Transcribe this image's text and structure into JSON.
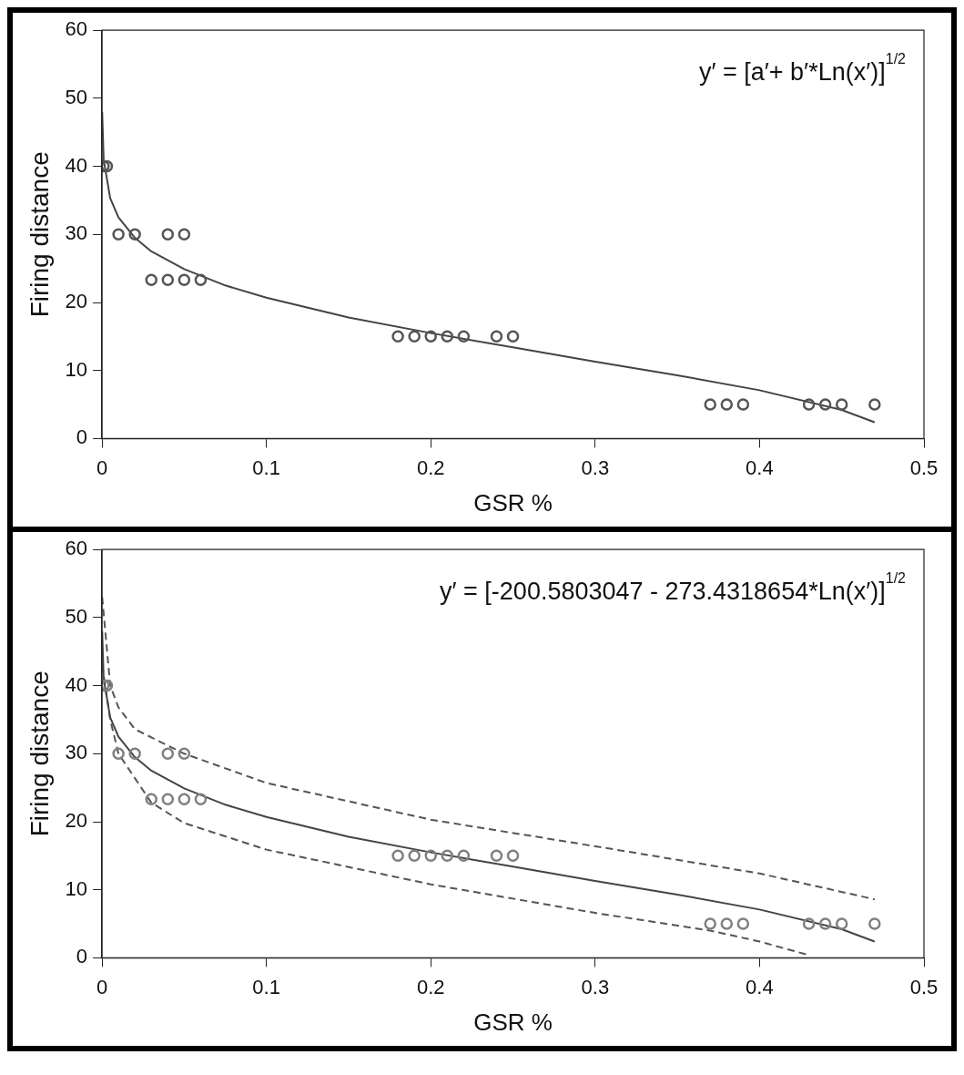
{
  "chart_data": [
    {
      "type": "scatter",
      "xlabel": "GSR %",
      "ylabel": "Firing distance",
      "xlim": [
        0,
        0.5
      ],
      "xticks": [
        0,
        0.1,
        0.2,
        0.3,
        0.4,
        0.5
      ],
      "ylim": [
        0,
        60
      ],
      "yticks": [
        0,
        10,
        20,
        30,
        40,
        50,
        60
      ],
      "grid": false,
      "legend": false,
      "annotations": [
        "y′ = [a′+ b′*Ln(x′)]$^{1/2}$"
      ],
      "series": [
        {
          "type": "scatter",
          "color": "#555555",
          "marker": "circle",
          "x": [
            0.001,
            0.003,
            0.01,
            0.02,
            0.04,
            0.05,
            0.03,
            0.04,
            0.05,
            0.06,
            0.18,
            0.19,
            0.2,
            0.21,
            0.22,
            0.24,
            0.25,
            0.37,
            0.38,
            0.39,
            0.43,
            0.44,
            0.45,
            0.47
          ],
          "values": [
            40,
            40,
            30,
            30,
            30,
            30,
            23.3,
            23.3,
            23.3,
            23.3,
            15,
            15,
            15,
            15,
            15,
            15,
            15,
            5,
            5,
            5,
            5,
            5,
            5,
            5
          ]
        },
        {
          "type": "line",
          "color": "#444444",
          "marker": "none",
          "line_style": "solid",
          "x": [
            0.0001,
            0.001,
            0.005,
            0.01,
            0.02,
            0.03,
            0.05,
            0.075,
            0.1,
            0.15,
            0.2,
            0.25,
            0.3,
            0.35,
            0.4,
            0.45,
            0.47
          ],
          "values": [
            48,
            41,
            35.3,
            32.5,
            29.5,
            27.5,
            24.9,
            22.5,
            20.7,
            17.8,
            15.5,
            13.4,
            11.3,
            9.3,
            7.1,
            4.2,
            2.4
          ]
        }
      ]
    },
    {
      "type": "scatter",
      "xlabel": "GSR %",
      "ylabel": "Firing distance",
      "xlim": [
        0,
        0.5
      ],
      "xticks": [
        0,
        0.1,
        0.2,
        0.3,
        0.4,
        0.5
      ],
      "ylim": [
        0,
        60
      ],
      "yticks": [
        0,
        10,
        20,
        30,
        40,
        50,
        60
      ],
      "grid": false,
      "legend": false,
      "annotations": [
        "y′ = [-200.5803047 - 273.4318654*Ln(x′)]$^{1/2}$"
      ],
      "series": [
        {
          "type": "scatter",
          "color": "#808080",
          "marker": "circle",
          "x": [
            0.001,
            0.003,
            0.01,
            0.02,
            0.04,
            0.05,
            0.03,
            0.04,
            0.05,
            0.06,
            0.18,
            0.19,
            0.2,
            0.21,
            0.22,
            0.24,
            0.25,
            0.37,
            0.38,
            0.39,
            0.43,
            0.44,
            0.45,
            0.47
          ],
          "values": [
            40,
            40,
            30,
            30,
            30,
            30,
            23.3,
            23.3,
            23.3,
            23.3,
            15,
            15,
            15,
            15,
            15,
            15,
            15,
            5,
            5,
            5,
            5,
            5,
            5,
            5
          ]
        },
        {
          "type": "line",
          "color": "#444444",
          "marker": "none",
          "line_style": "solid",
          "x": [
            0.0001,
            0.001,
            0.005,
            0.01,
            0.02,
            0.03,
            0.05,
            0.075,
            0.1,
            0.15,
            0.2,
            0.25,
            0.3,
            0.35,
            0.4,
            0.45,
            0.47
          ],
          "values": [
            48,
            41,
            35.3,
            32.5,
            29.5,
            27.5,
            24.9,
            22.5,
            20.7,
            17.8,
            15.5,
            13.4,
            11.3,
            9.3,
            7.1,
            4.2,
            2.4
          ]
        },
        {
          "type": "line",
          "color": "#555555",
          "marker": "none",
          "line_style": "dashed",
          "x": [
            0.0001,
            0.005,
            0.01,
            0.02,
            0.05,
            0.1,
            0.2,
            0.3,
            0.4,
            0.47
          ],
          "values": [
            53,
            40,
            36.8,
            33.6,
            30,
            25.7,
            20.3,
            16.4,
            12.4,
            8.6
          ]
        },
        {
          "type": "line",
          "color": "#555555",
          "marker": "none",
          "line_style": "dashed",
          "x": [
            0.0001,
            0.005,
            0.01,
            0.03,
            0.05,
            0.1,
            0.2,
            0.3,
            0.37,
            0.4,
            0.43
          ],
          "values": [
            43,
            35,
            30,
            22.8,
            19.8,
            15.9,
            10.8,
            6.6,
            4,
            2.4,
            0.4
          ]
        }
      ]
    }
  ]
}
